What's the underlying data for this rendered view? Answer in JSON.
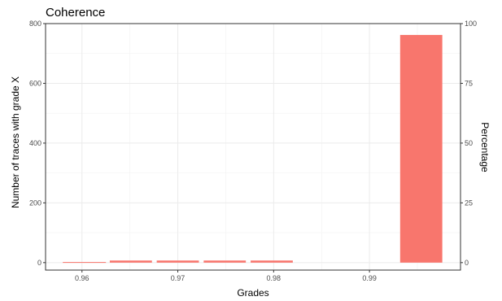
{
  "chart_data": {
    "type": "bar",
    "title": "Coherence",
    "xlabel": "Grades",
    "ylabel": "Number of traces with grade X",
    "y2label": "Percentage",
    "xlim": [
      0.9562,
      0.9995
    ],
    "ylim": [
      -25,
      800
    ],
    "y2lim": [
      0,
      100
    ],
    "xticks": [
      {
        "value": 0.96,
        "label": "0.96"
      },
      {
        "value": 0.97,
        "label": "0.97"
      },
      {
        "value": 0.98,
        "label": "0.98"
      },
      {
        "value": 0.99,
        "label": "0.99"
      }
    ],
    "yticks": [
      {
        "value": 0,
        "label": "0"
      },
      {
        "value": 200,
        "label": "200"
      },
      {
        "value": 400,
        "label": "400"
      },
      {
        "value": 600,
        "label": "600"
      },
      {
        "value": 800,
        "label": "800"
      }
    ],
    "y2ticks": [
      {
        "value": 0,
        "label": "0"
      },
      {
        "value": 25,
        "label": "25"
      },
      {
        "value": 50,
        "label": "50"
      },
      {
        "value": 75,
        "label": "75"
      },
      {
        "value": 100,
        "label": "100"
      }
    ],
    "bars": [
      {
        "x0": 0.958,
        "x1": 0.9625,
        "value": 2
      },
      {
        "x0": 0.9629,
        "x1": 0.9673,
        "value": 7
      },
      {
        "x0": 0.9678,
        "x1": 0.9722,
        "value": 7
      },
      {
        "x0": 0.9727,
        "x1": 0.9771,
        "value": 7
      },
      {
        "x0": 0.9776,
        "x1": 0.982,
        "value": 7
      },
      {
        "x0": 0.9932,
        "x1": 0.9976,
        "value": 762
      }
    ],
    "bar_color": "#F8766D",
    "grid": true
  }
}
